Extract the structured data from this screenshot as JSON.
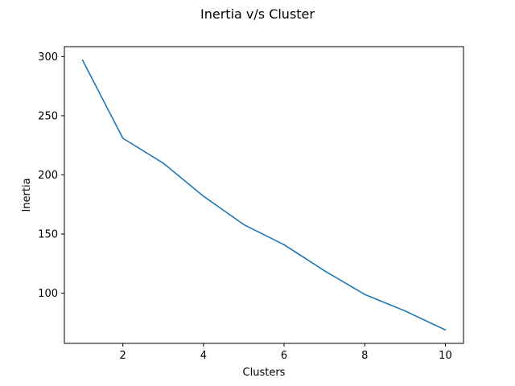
{
  "chart_data": {
    "type": "line",
    "title": "Inertia v/s Cluster",
    "xlabel": "Clusters",
    "ylabel": "Inertia",
    "x": [
      1,
      2,
      3,
      4,
      5,
      6,
      7,
      8,
      9,
      10
    ],
    "series": [
      {
        "values": [
          297,
          231,
          210,
          182,
          158,
          141,
          119,
          99,
          85,
          69
        ],
        "color": "#1f77b4"
      }
    ],
    "xlim": [
      0.55,
      10.45
    ],
    "ylim": [
      57.6,
      308.4
    ],
    "xticks": [
      2,
      4,
      6,
      8,
      10
    ],
    "yticks": [
      100,
      150,
      200,
      250,
      300
    ],
    "grid": false
  }
}
